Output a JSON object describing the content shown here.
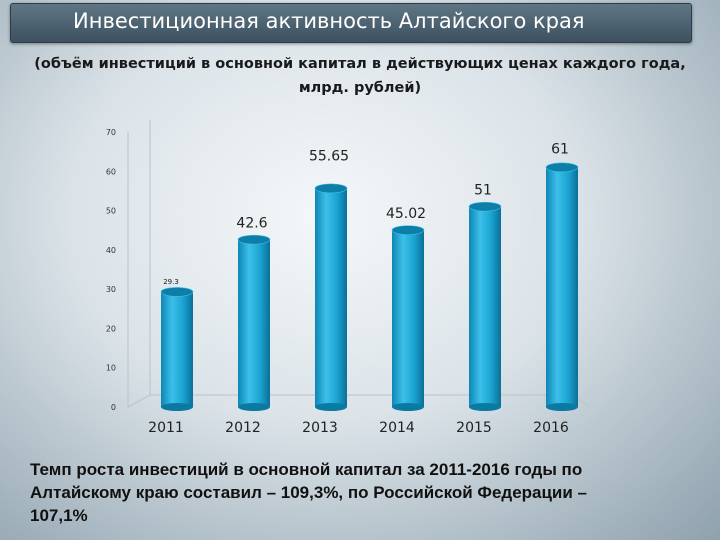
{
  "header": {
    "title": "Инвестиционная активность  Алтайского края",
    "subtitle_lines": [
      "(объём инвестиций в основной капитал в действующих ценах каждого года,",
      "млрд. рублей)"
    ]
  },
  "chart_data": {
    "type": "bar",
    "categories": [
      "2011",
      "2012",
      "2013",
      "2014",
      "2015",
      "2016"
    ],
    "values": [
      29.3,
      42.6,
      55.65,
      45.02,
      51,
      61
    ],
    "value_labels": [
      "29.3",
      "42.6",
      "55.65",
      "45.02",
      "51",
      "61"
    ],
    "yticks": [
      "0",
      "10",
      "20",
      "30",
      "40",
      "50",
      "60",
      "70"
    ],
    "ylim": [
      0,
      70
    ],
    "bar_color": "#1fa3cf",
    "bar_top_color": "#0d7ea8",
    "title": "",
    "xlabel": "",
    "ylabel": ""
  },
  "footer": {
    "lines": [
      "Темп роста инвестиций в основной капитал за 2011-2016 годы по",
      "Алтайскому краю составил – 109,3%, по Российской Федерации –",
      "107,1%"
    ]
  }
}
